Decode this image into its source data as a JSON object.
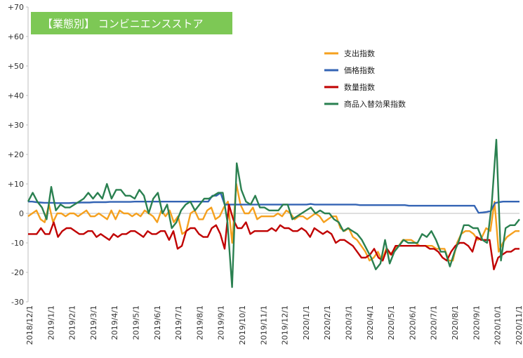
{
  "chart_data": {
    "type": "line",
    "title": "【業態別】 コンビニエンスストア",
    "title_bg_color": "#7dc855",
    "ylim": [
      -30,
      70
    ],
    "yticks": [
      "+70",
      "+60",
      "+50",
      "+40",
      "+30",
      "+20",
      "+10",
      "0",
      "-10",
      "-20",
      "-30"
    ],
    "grid": "none",
    "legend_position": "top-right",
    "xlabels": [
      "2018/12/1",
      "2019/1/1",
      "2019/2/1",
      "2019/3/1",
      "2019/4/1",
      "2019/5/1",
      "2019/6/1",
      "2019/7/1",
      "2019/8/1",
      "2019/9/1",
      "2019/10/1",
      "2019/11/1",
      "2019/12/1",
      "2020/1/1",
      "2020/2/1",
      "2020/3/1",
      "2020/4/1",
      "2020/5/1",
      "2020/6/1",
      "2020/7/1",
      "2020/8/1",
      "2020/9/1",
      "2020/10/1",
      "2020/11/1"
    ],
    "series": [
      {
        "name": "支出指数",
        "color": "#f5a01e",
        "values": [
          -1,
          0,
          1,
          -2,
          -3,
          3,
          -3,
          0,
          0,
          -1,
          0,
          0,
          -1,
          0,
          1,
          -1,
          -1,
          0,
          -1,
          -2,
          1,
          -2,
          1,
          0,
          0,
          -1,
          0,
          -1,
          1,
          0,
          -1,
          -3,
          1,
          -1,
          1,
          -3,
          -1,
          -7,
          -6,
          0,
          1,
          -2,
          -2,
          1,
          2,
          -2,
          -1,
          2,
          4,
          -10,
          10,
          3,
          0,
          0,
          2,
          -2,
          -1,
          -1,
          -1,
          -1,
          0,
          -1,
          1,
          0,
          -2,
          -1,
          -1,
          -2,
          -1,
          0,
          -1,
          -3,
          -2,
          -1,
          -1,
          -5,
          -6,
          -5,
          -8,
          -9,
          -11,
          -13,
          -16,
          -15,
          -13,
          -16,
          -12,
          -14,
          -12,
          -11,
          -9,
          -9,
          -9,
          -10,
          -11,
          -11,
          -11,
          -11,
          -12,
          -12,
          -12,
          -16,
          -16,
          -10,
          -7,
          -6,
          -6,
          -7,
          -9,
          -8,
          -5,
          -6,
          4,
          -13,
          -10,
          -8,
          -7,
          -6,
          -6
        ]
      },
      {
        "name": "価格指数",
        "color": "#3464b4",
        "values": [
          4,
          4,
          3.8,
          3.7,
          3.6,
          3.6,
          3.6,
          3.5,
          3.5,
          3.5,
          3.5,
          3.6,
          3.6,
          3.7,
          3.7,
          3.7,
          3.8,
          3.8,
          3.8,
          3.8,
          3.9,
          3.9,
          3.9,
          3.9,
          3.9,
          3.9,
          4,
          4,
          4,
          4,
          4,
          4,
          4,
          4,
          4,
          4,
          4,
          4,
          4,
          4,
          4,
          4,
          4,
          4,
          4,
          6,
          6,
          7,
          3,
          3,
          3,
          3,
          3,
          3,
          3,
          3,
          3,
          3,
          3,
          3,
          3,
          3,
          3,
          3,
          3,
          3,
          3,
          3,
          3,
          3.2,
          3,
          3,
          3,
          3,
          3,
          3,
          3,
          3,
          3,
          3,
          3,
          2.8,
          2.8,
          2.8,
          2.8,
          2.8,
          2.8,
          2.8,
          2.8,
          2.8,
          2.8,
          2.8,
          2.8,
          2.6,
          2.6,
          2.6,
          2.6,
          2.6,
          2.6,
          2.6,
          2.6,
          2.6,
          2.6,
          2.6,
          2.6,
          2.6,
          2.6,
          2.6,
          2.6,
          2.6,
          0.2,
          0.3,
          0.5,
          0.8,
          3.5,
          3.8,
          4,
          4,
          4,
          4,
          4
        ]
      },
      {
        "name": "数量指数",
        "color": "#c00000",
        "values": [
          -7,
          -7,
          -7,
          -5,
          -7,
          -7,
          -3,
          -8,
          -6,
          -5,
          -5,
          -6,
          -7,
          -7,
          -6,
          -6,
          -8,
          -7,
          -8,
          -9,
          -7,
          -8,
          -7,
          -7,
          -6,
          -6,
          -7,
          -8,
          -6,
          -7,
          -7,
          -6,
          -6,
          -9,
          -6,
          -12,
          -11,
          -6,
          -5,
          -5,
          -7,
          -8,
          -8,
          -5,
          -4,
          -7,
          -12,
          3,
          -2,
          -5,
          -5,
          -3,
          -7,
          -6,
          -6,
          -6,
          -6,
          -5,
          -6,
          -4,
          -5,
          -5,
          -6,
          -6,
          -5,
          -6,
          -8,
          -5,
          -6,
          -7,
          -6,
          -7,
          -10,
          -9,
          -9,
          -10,
          -11,
          -13,
          -15,
          -15,
          -14,
          -12,
          -15,
          -16,
          -12,
          -14,
          -11,
          -11,
          -11,
          -11,
          -11,
          -11,
          -11,
          -11,
          -12,
          -12,
          -13,
          -15,
          -16,
          -13,
          -11,
          -10,
          -10,
          -11,
          -13,
          -8,
          -9,
          -9,
          -9,
          -19,
          -15,
          -14,
          -13,
          -13,
          -12,
          -12
        ]
      },
      {
        "name": "商品入替効果指数",
        "color": "#2a8050",
        "values": [
          4,
          7,
          4,
          2,
          -2,
          9,
          1,
          3,
          2,
          2,
          3,
          4,
          5,
          7,
          5,
          7,
          5,
          10,
          5,
          8,
          8,
          6,
          6,
          5,
          8,
          6,
          0,
          5,
          7,
          0,
          3,
          -5,
          -3,
          1,
          3,
          4,
          1,
          3,
          5,
          5,
          6,
          7,
          7,
          -3,
          -25,
          17,
          8,
          4,
          3,
          6,
          2,
          2,
          1,
          1,
          1,
          3,
          3,
          -2,
          -1,
          0,
          1,
          2,
          0,
          1,
          0,
          0,
          -2,
          -3,
          -6,
          -5,
          -6,
          -7,
          -9,
          -12,
          -15,
          -19,
          -17,
          -9,
          -17,
          -13,
          -11,
          -9,
          -10,
          -10,
          -10,
          -7,
          -8,
          -6,
          -9,
          -13,
          -13,
          -18,
          -13,
          -9,
          -4,
          -4,
          -5,
          -5,
          -9,
          -10,
          3,
          25,
          -16,
          -5,
          -4,
          -4,
          -2
        ]
      }
    ]
  }
}
